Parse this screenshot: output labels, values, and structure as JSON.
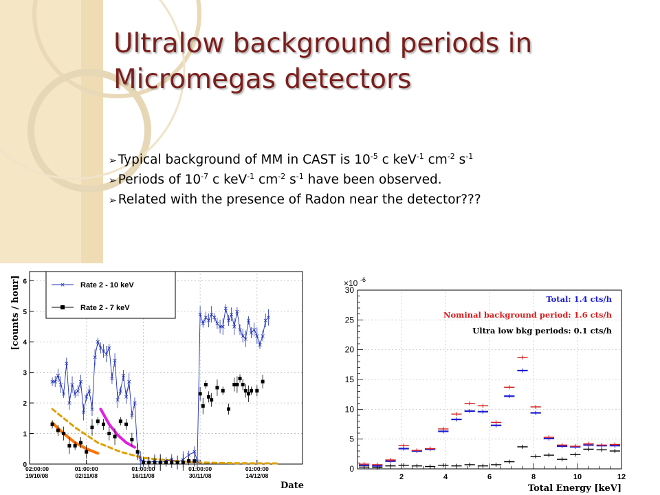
{
  "slide": {
    "title_lines": [
      "Ultralow background periods in",
      "Micromegas detectors"
    ],
    "bullets": [
      {
        "segments": [
          {
            "t": "Typical background of MM in CAST is 10"
          },
          {
            "t": "-5",
            "sup": true
          },
          {
            "t": " c keV"
          },
          {
            "t": "-1",
            "sup": true
          },
          {
            "t": " cm"
          },
          {
            "t": "-2",
            "sup": true
          },
          {
            "t": " s"
          },
          {
            "t": "-1",
            "sup": true
          }
        ]
      },
      {
        "segments": [
          {
            "t": "Periods of 10"
          },
          {
            "t": "-7",
            "sup": true
          },
          {
            "t": " c keV"
          },
          {
            "t": "-1",
            "sup": true
          },
          {
            "t": " cm"
          },
          {
            "t": "-2",
            "sup": true
          },
          {
            "t": " s"
          },
          {
            "t": "-1",
            "sup": true
          },
          {
            "t": " have been observed."
          }
        ]
      },
      {
        "segments": [
          {
            "t": "Related with the presence of Radon near the detector???"
          }
        ]
      }
    ],
    "bullet_marker": "➢",
    "colors": {
      "title": "#7a1f1c",
      "decor_bar": "#f3e3c0",
      "decor_ring": "#e3d4b2"
    }
  },
  "chart_data": [
    {
      "type": "line",
      "ylabel": "[counts / hour]",
      "xlabel": "Date",
      "ylim": [
        0,
        6.3
      ],
      "xlim": [
        0,
        48
      ],
      "yticks": [
        0,
        1,
        2,
        3,
        4,
        5,
        6
      ],
      "xticks": [
        {
          "x": 0,
          "l1": "02:00:00",
          "l2": "19/10/08"
        },
        {
          "x": 10,
          "l1": "01:00:00",
          "l2": "02/11/08"
        },
        {
          "x": 20,
          "l1": "01:00:00",
          "l2": "16/11/08"
        },
        {
          "x": 30,
          "l1": "01:00:00",
          "l2": "30/11/08"
        },
        {
          "x": 40,
          "l1": "01:00:00",
          "l2": "14/12/08"
        }
      ],
      "legend": [
        "Rate 2 - 10 keV",
        "Rate 2 - 7 keV"
      ],
      "legend_position": "top-left",
      "series": [
        {
          "name": "Rate 2 - 10 keV",
          "color": "#1d2fb8",
          "marker": "star",
          "x": [
            4,
            4.5,
            5,
            5.5,
            6,
            6.5,
            7,
            7.5,
            8,
            8.5,
            9,
            9.5,
            10,
            10.5,
            11,
            11.5,
            12,
            12.5,
            13,
            13.5,
            14,
            14.5,
            15,
            15.5,
            16,
            16.5,
            17,
            17.5,
            18,
            18.5,
            19,
            19.5,
            20,
            21,
            22,
            23,
            24,
            25,
            26,
            27,
            28,
            29,
            29.5,
            30,
            30.5,
            31,
            31.5,
            32,
            32.5,
            33,
            33.5,
            34,
            34.5,
            35,
            35.5,
            36,
            36.5,
            37,
            37.5,
            38,
            38.5,
            39,
            39.5,
            40,
            40.5,
            41,
            41.5,
            42
          ],
          "y": [
            2.7,
            2.7,
            2.9,
            2.6,
            2.3,
            3.3,
            2.0,
            2.6,
            2.3,
            2.4,
            2.7,
            1.7,
            2.2,
            2.4,
            1.8,
            3.5,
            4.0,
            3.8,
            3.7,
            3.6,
            3.8,
            2.8,
            3.4,
            2.1,
            2.4,
            2.9,
            2.2,
            2.7,
            1.6,
            2.0,
            0.4,
            0.15,
            0.1,
            0.05,
            0.1,
            0.05,
            0.1,
            0.15,
            0.05,
            0.15,
            0.3,
            0.4,
            0.1,
            4.9,
            4.6,
            4.8,
            4.7,
            4.9,
            4.8,
            4.6,
            4.5,
            4.5,
            5.1,
            4.7,
            4.9,
            4.5,
            5.0,
            4.4,
            4.2,
            4.1,
            4.7,
            4.3,
            4.4,
            4.2,
            3.9,
            4.2,
            4.7,
            4.8
          ]
        },
        {
          "name": "Rate 2 - 7 keV",
          "color": "#000000",
          "marker": "square",
          "x": [
            4,
            5,
            6,
            7,
            8,
            9,
            10,
            11,
            12,
            13,
            14,
            15,
            16,
            17,
            18,
            19,
            20,
            21,
            22,
            23,
            24,
            25,
            26,
            27,
            28,
            29,
            30,
            30.5,
            31,
            31.5,
            32,
            33,
            34,
            35,
            36,
            36.5,
            37,
            37.5,
            38,
            38.5,
            39,
            40,
            41
          ],
          "y": [
            1.3,
            1.1,
            1.0,
            0.6,
            0.6,
            0.7,
            0.4,
            1.2,
            1.4,
            1.3,
            1.0,
            0.9,
            1.4,
            1.3,
            0.8,
            0.4,
            0.05,
            0.05,
            0.05,
            0.05,
            0.05,
            0.05,
            0.05,
            0.05,
            0.1,
            0.1,
            2.3,
            1.9,
            2.6,
            2.2,
            2.1,
            2.5,
            2.4,
            1.8,
            2.6,
            2.6,
            2.8,
            2.6,
            2.4,
            2.3,
            2.4,
            2.4,
            2.7
          ]
        },
        {
          "name": "",
          "color": "#ff7300",
          "points": [
            [
              4,
              1.35
            ],
            [
              6,
              1.0
            ],
            [
              8,
              0.7
            ],
            [
              10,
              0.5
            ],
            [
              12,
              0.35
            ]
          ],
          "style": "thick"
        },
        {
          "name": "",
          "color": "#e0a000",
          "points": [
            [
              4,
              1.8
            ],
            [
              8,
              1.2
            ],
            [
              12,
              0.7
            ],
            [
              16,
              0.4
            ],
            [
              20,
              0.2
            ],
            [
              26,
              0.1
            ],
            [
              30,
              0.05
            ],
            [
              36,
              0.03
            ],
            [
              44,
              0.02
            ]
          ],
          "style": "dashed"
        },
        {
          "name": "",
          "color": "#e020e0",
          "points": [
            [
              12.5,
              1.8
            ],
            [
              14,
              1.3
            ],
            [
              15.5,
              0.95
            ],
            [
              17,
              0.7
            ],
            [
              18.5,
              0.55
            ]
          ],
          "style": "thick"
        }
      ]
    },
    {
      "type": "line",
      "xlabel": "Total Energy [keV]",
      "ylabel": "",
      "yexponent_label": "×10",
      "yexponent_power": "-6",
      "xlim": [
        0,
        12
      ],
      "ylim": [
        0,
        30
      ],
      "xticks": [
        2,
        4,
        6,
        8,
        10,
        12
      ],
      "yticks": [
        0,
        5,
        10,
        15,
        20,
        25,
        30
      ],
      "legend": [
        {
          "text": "Total: 1.4 cts/h",
          "color": "#1a1ad6"
        },
        {
          "text": "Nominal background period: 1.6 cts/h",
          "color": "#d81c1c"
        },
        {
          "text": "Ultra low bkg periods: 0.1 cts/h",
          "color": "#000000"
        }
      ],
      "legend_position": "top-right",
      "series": [
        {
          "name": "Total: 1.4 cts/h",
          "color": "#1a1ad6",
          "y": [
            0.6,
            0.5,
            1.3,
            3.4,
            3.0,
            3.3,
            6.3,
            8.3,
            9.7,
            9.6,
            7.3,
            12.2,
            16.5,
            9.4,
            5.1,
            3.8,
            3.7,
            4.0,
            3.9,
            3.9
          ]
        },
        {
          "name": "Nominal background period: 1.6 cts/h",
          "color": "#d81c1c",
          "y": [
            0.8,
            0.7,
            1.5,
            3.9,
            3.1,
            3.4,
            6.7,
            9.2,
            11.0,
            10.6,
            7.8,
            13.7,
            18.7,
            10.4,
            5.3,
            4.0,
            3.8,
            4.2,
            4.0,
            4.1
          ]
        },
        {
          "name": "Ultra low bkg periods: 0.1 cts/h",
          "color": "#000000",
          "y": [
            0.3,
            0.2,
            0.5,
            0.6,
            0.5,
            0.4,
            0.6,
            0.5,
            0.7,
            0.5,
            0.7,
            1.2,
            3.7,
            2.1,
            2.3,
            1.6,
            2.4,
            3.3,
            3.2,
            3.0
          ]
        }
      ]
    }
  ]
}
